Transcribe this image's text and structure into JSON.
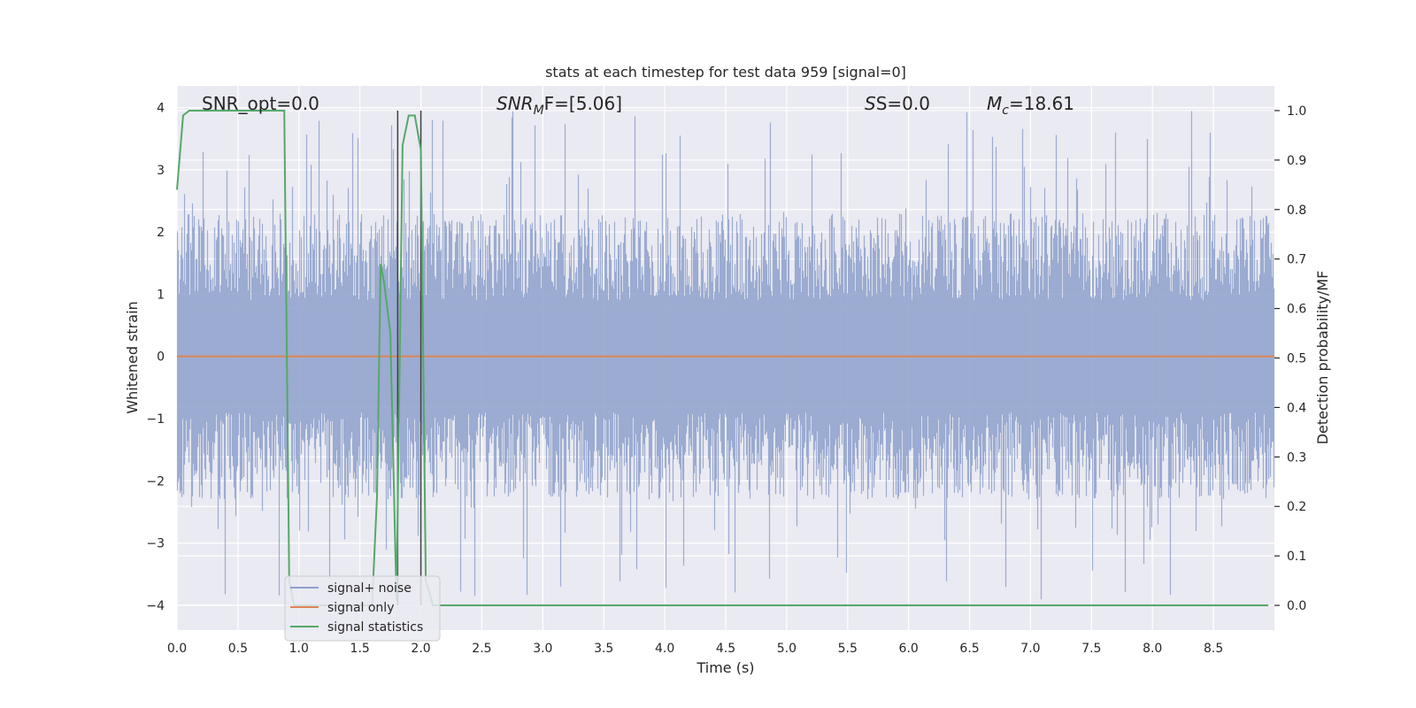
{
  "chart_data": {
    "type": "line",
    "title": "stats at each timestep for test data 959 [signal=0]",
    "xlabel": "Time (s)",
    "ylabel_left": "Whitened strain",
    "ylabel_right": "Detection probability/MF",
    "xlim": [
      0.0,
      9.0
    ],
    "ylim_left": [
      -4.4,
      4.35
    ],
    "ylim_right": [
      -0.05,
      1.05
    ],
    "x_ticks": [
      "0.0",
      "0.5",
      "1.0",
      "1.5",
      "2.0",
      "2.5",
      "3.0",
      "3.5",
      "4.0",
      "4.5",
      "5.0",
      "5.5",
      "6.0",
      "6.5",
      "7.0",
      "7.5",
      "8.0",
      "8.5"
    ],
    "x_tick_values": [
      0.0,
      0.5,
      1.0,
      1.5,
      2.0,
      2.5,
      3.0,
      3.5,
      4.0,
      4.5,
      5.0,
      5.5,
      6.0,
      6.5,
      7.0,
      7.5,
      8.0,
      8.5
    ],
    "y_left_ticks": [
      "4",
      "3",
      "2",
      "1",
      "0",
      "−1",
      "−2",
      "−3",
      "−4"
    ],
    "y_left_tick_values": [
      4,
      3,
      2,
      1,
      0,
      -1,
      -2,
      -3,
      -4
    ],
    "y_right_ticks": [
      "1.0",
      "0.9",
      "0.8",
      "0.7",
      "0.6",
      "0.5",
      "0.4",
      "0.3",
      "0.2",
      "0.1",
      "0.0"
    ],
    "y_right_tick_values": [
      1.0,
      0.9,
      0.8,
      0.7,
      0.6,
      0.5,
      0.4,
      0.3,
      0.2,
      0.1,
      0.0
    ],
    "grid": true,
    "annotations": {
      "snr_opt": "SNR_opt=0.0",
      "snr_mf_base": "SNR",
      "snr_mf_sub": "M",
      "snr_mf_rest": "F=[5.06]",
      "s_stat": "S=0.0",
      "mc_base": "M",
      "mc_sub": "c",
      "mc_rest": "=18.61"
    },
    "vertical_lines_x": [
      1.81,
      2.0
    ],
    "series": [
      {
        "name": "signal+ noise",
        "color": "#8da0cb",
        "axis": "left",
        "kind": "whitened noise, |amplitude| mostly below 2.5, peaks near 4",
        "envelope_summary": {
          "typical_max": 2.3,
          "typical_min": -2.3,
          "peak_max": 3.95,
          "peak_min": -3.95
        }
      },
      {
        "name": "signal only",
        "color": "#dd8452",
        "axis": "left",
        "x": [
          0.0,
          9.0
        ],
        "y": [
          0.0,
          0.0
        ]
      },
      {
        "name": "signal statistics",
        "color": "#55a868",
        "axis": "right",
        "x": [
          0.0,
          0.05,
          0.1,
          0.2,
          0.3,
          0.4,
          0.5,
          0.6,
          0.7,
          0.8,
          0.88,
          0.92,
          0.96,
          1.0,
          1.1,
          1.2,
          1.3,
          1.4,
          1.5,
          1.6,
          1.64,
          1.67,
          1.7,
          1.75,
          1.8,
          1.85,
          1.9,
          1.95,
          2.0,
          2.04,
          2.1,
          2.2,
          2.3,
          2.5,
          3.0,
          4.0,
          5.0,
          6.0,
          7.0,
          8.0,
          8.95
        ],
        "y": [
          0.84,
          0.99,
          1.0,
          1.0,
          1.0,
          1.0,
          1.0,
          1.0,
          1.0,
          1.0,
          1.0,
          0.05,
          0.0,
          0.0,
          0.0,
          0.0,
          0.0,
          0.0,
          0.0,
          0.0,
          0.22,
          0.69,
          0.65,
          0.55,
          0.01,
          0.93,
          0.99,
          0.99,
          0.92,
          0.05,
          0.0,
          0.0,
          0.0,
          0.0,
          0.0,
          0.0,
          0.0,
          0.0,
          0.0,
          0.0,
          0.0
        ]
      }
    ],
    "colors": {
      "background": "#eaeaf2",
      "grid": "#ffffff",
      "noise": "#8da0cb",
      "signal": "#dd8452",
      "stats": "#55a868",
      "vline": "#404040"
    }
  }
}
